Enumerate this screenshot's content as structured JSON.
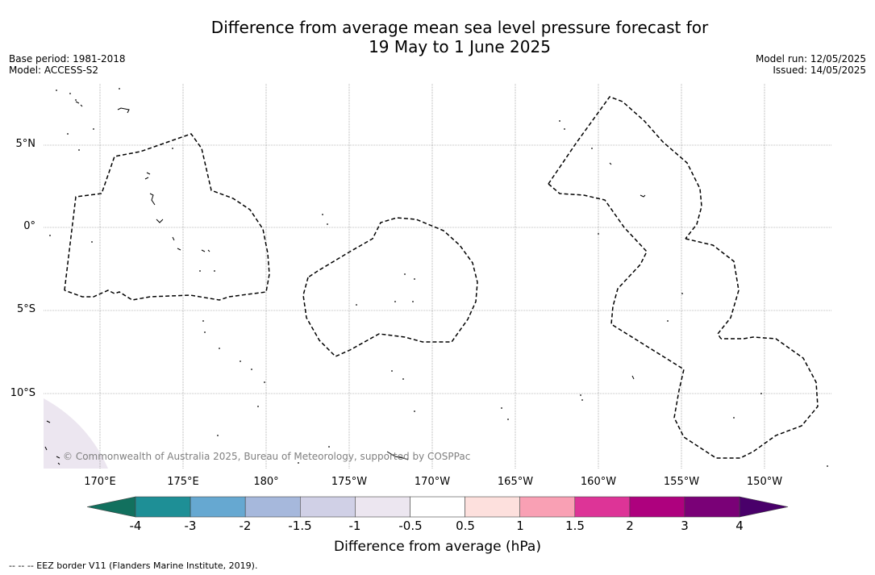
{
  "title": {
    "line1": "Difference from average mean sea level pressure forecast for",
    "line2": "19 May to 1 June 2025"
  },
  "meta": {
    "base_period": "Base period: 1981-2018",
    "model": "Model: ACCESS-S2",
    "model_run": "Model run: 12/05/2025",
    "issued": "Issued: 14/05/2025"
  },
  "map": {
    "lon_labels": [
      "170°E",
      "175°E",
      "180°",
      "175°W",
      "170°W",
      "165°W",
      "160°W",
      "155°W",
      "150°W"
    ],
    "lat_labels": [
      "5°N",
      "0°",
      "5°S",
      "10°S"
    ],
    "copyright": "© Commonwealth of Australia 2025, Bureau of Meteorology, supported by COSPPac",
    "border_color": "#000000",
    "grid_color": "#808080"
  },
  "colorbar": {
    "label": "Difference from average (hPa)",
    "ticks": [
      "-4",
      "-3",
      "-2",
      "-1.5",
      "-1",
      "-0.5",
      "0.5",
      "1",
      "1.5",
      "2",
      "3",
      "4"
    ],
    "colors": [
      "#12705e",
      "#1e8f96",
      "#66a8d1",
      "#a6b8dc",
      "#d0d0e6",
      "#ece6f0",
      "#ffffff",
      "#fde0dd",
      "#f9a0b4",
      "#dd3497",
      "#ae017e",
      "#7a0177",
      "#49006a"
    ]
  },
  "footnote": "--  --  -- EEZ border V11 (Flanders Marine Institute, 2019)."
}
